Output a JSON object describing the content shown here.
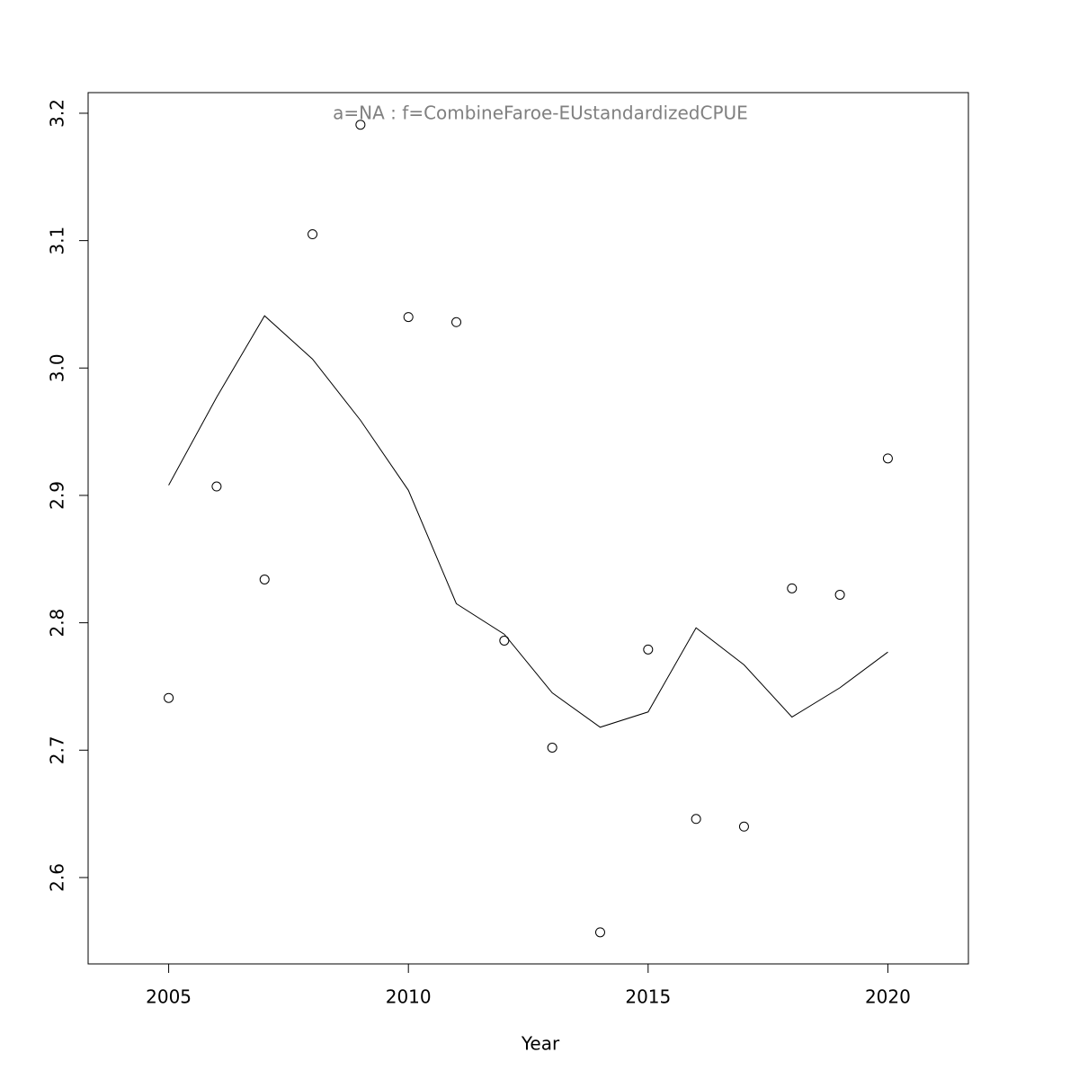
{
  "chart_data": {
    "type": "line",
    "title": "a=NA  :  f=CombineFaroe-EUstandardizedCPUE",
    "x_label": "Year",
    "x": [
      2005,
      2006,
      2007,
      2008,
      2009,
      2010,
      2011,
      2012,
      2013,
      2014,
      2015,
      2016,
      2017,
      2018,
      2019,
      2020
    ],
    "series": [
      {
        "style": "points",
        "color": "#000000",
        "values": [
          2.741,
          2.907,
          2.834,
          3.105,
          3.191,
          3.04,
          3.036,
          2.786,
          2.702,
          2.557,
          2.779,
          2.646,
          2.64,
          2.827,
          2.822,
          2.929
        ]
      },
      {
        "style": "line",
        "color": "#000000",
        "values": [
          2.908,
          2.977,
          3.041,
          3.007,
          2.959,
          2.904,
          2.815,
          2.791,
          2.745,
          2.718,
          2.73,
          2.796,
          2.767,
          2.726,
          2.749,
          2.777
        ]
      }
    ],
    "xlim": [
      2003.32,
      2021.68
    ],
    "ylim": [
      2.5322,
      3.2162
    ],
    "xticks": [
      2005,
      2010,
      2015,
      2020
    ],
    "yticks": [
      2.6,
      2.7,
      2.8,
      2.9,
      {
        "value": 3,
        "label": "3.0"
      },
      3.1,
      3.2
    ]
  }
}
